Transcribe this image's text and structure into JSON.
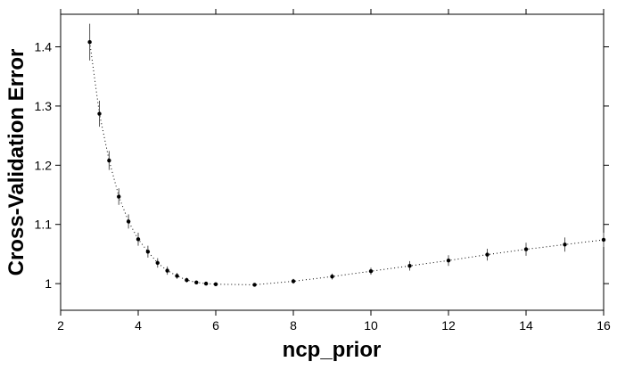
{
  "chart_data": {
    "type": "scatter",
    "title": "",
    "xlabel": "ncp_prior",
    "ylabel": "Cross-Validation Error",
    "xlim": [
      2,
      16
    ],
    "ylim": [
      0.955,
      1.455
    ],
    "grid": false,
    "x_ticks": [
      2,
      4,
      6,
      8,
      10,
      12,
      14,
      16
    ],
    "x_tick_labels": [
      "2",
      "4",
      "6",
      "8",
      "10",
      "12",
      "14",
      "16"
    ],
    "y_ticks": [
      1.0,
      1.1,
      1.2,
      1.3,
      1.4
    ],
    "y_tick_labels": [
      "1",
      "1.1",
      "1.2",
      "1.3",
      "1.4"
    ],
    "line_style": "dotted",
    "error_bars": true,
    "series": [
      {
        "x": [
          2.75,
          3.0,
          3.25,
          3.5,
          3.75,
          4.0,
          4.25,
          4.5,
          4.75,
          5.0,
          5.25,
          5.5,
          5.75,
          6.0,
          7.0,
          8.0,
          9.0,
          10.0,
          11.0,
          12.0,
          13.0,
          14.0,
          15.0,
          16.0
        ],
        "y": [
          1.408,
          1.287,
          1.208,
          1.147,
          1.105,
          1.075,
          1.054,
          1.035,
          1.022,
          1.013,
          1.006,
          1.002,
          1.0,
          0.999,
          0.998,
          1.004,
          1.012,
          1.021,
          1.03,
          1.039,
          1.049,
          1.058,
          1.066,
          1.074
        ],
        "err": [
          0.031,
          0.022,
          0.016,
          0.014,
          0.012,
          0.011,
          0.01,
          0.008,
          0.007,
          0.005,
          0.004,
          0.003,
          0.002,
          0.002,
          0.003,
          0.004,
          0.005,
          0.006,
          0.008,
          0.009,
          0.01,
          0.011,
          0.012,
          0.012
        ]
      }
    ]
  }
}
